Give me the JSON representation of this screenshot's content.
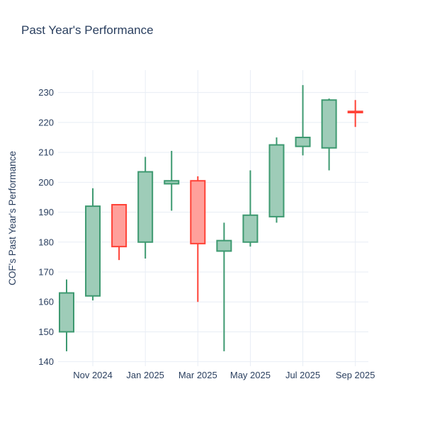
{
  "chart_data": {
    "type": "candlestick",
    "title": "Past Year's Performance",
    "ylabel": "COF's Past Year's Performance",
    "xlabel": "",
    "ylim": [
      138.5,
      237.5
    ],
    "y_ticks": [
      140,
      150,
      160,
      170,
      180,
      190,
      200,
      210,
      220,
      230
    ],
    "x_ticks": [
      {
        "label": "Nov 2024",
        "index": 1
      },
      {
        "label": "Jan 2025",
        "index": 3
      },
      {
        "label": "Mar 2025",
        "index": 5
      },
      {
        "label": "May 2025",
        "index": 7
      },
      {
        "label": "Jul 2025",
        "index": 9
      },
      {
        "label": "Sep 2025",
        "index": 11
      }
    ],
    "grid": true,
    "legend": false,
    "categories": [
      "Oct 2024",
      "Nov 2024",
      "Dec 2024",
      "Jan 2025",
      "Feb 2025",
      "Mar 2025",
      "Apr 2025",
      "May 2025",
      "Jun 2025",
      "Jul 2025",
      "Aug 2025",
      "Sep 2025"
    ],
    "candles": [
      {
        "x": "Oct 2024",
        "open": 150.0,
        "high": 167.5,
        "low": 143.5,
        "close": 163.0
      },
      {
        "x": "Nov 2024",
        "open": 162.0,
        "high": 198.0,
        "low": 160.5,
        "close": 192.0
      },
      {
        "x": "Dec 2024",
        "open": 192.5,
        "high": 192.5,
        "low": 174.0,
        "close": 178.5
      },
      {
        "x": "Jan 2025",
        "open": 180.0,
        "high": 208.5,
        "low": 174.5,
        "close": 203.5
      },
      {
        "x": "Feb 2025",
        "open": 199.5,
        "high": 210.5,
        "low": 190.5,
        "close": 200.5
      },
      {
        "x": "Mar 2025",
        "open": 200.5,
        "high": 202.0,
        "low": 160.0,
        "close": 179.5
      },
      {
        "x": "Apr 2025",
        "open": 177.0,
        "high": 186.5,
        "low": 143.5,
        "close": 180.5
      },
      {
        "x": "May 2025",
        "open": 180.0,
        "high": 204.0,
        "low": 178.5,
        "close": 189.0
      },
      {
        "x": "Jun 2025",
        "open": 188.5,
        "high": 215.0,
        "low": 186.5,
        "close": 212.5
      },
      {
        "x": "Jul 2025",
        "open": 212.0,
        "high": 232.5,
        "low": 209.0,
        "close": 215.0
      },
      {
        "x": "Aug 2025",
        "open": 211.5,
        "high": 228.0,
        "low": 204.0,
        "close": 227.5
      },
      {
        "x": "Sep 2025",
        "open": 223.7,
        "high": 227.5,
        "low": 218.5,
        "close": 223.3
      }
    ],
    "colors": {
      "increasing": "#3D9970",
      "increasing_fill": "#9ECCB8",
      "decreasing": "#FF4136",
      "decreasing_fill": "#FFA09B",
      "grid": "#E8EDF5",
      "text": "#2a3f5f",
      "background": "#ffffff"
    }
  }
}
